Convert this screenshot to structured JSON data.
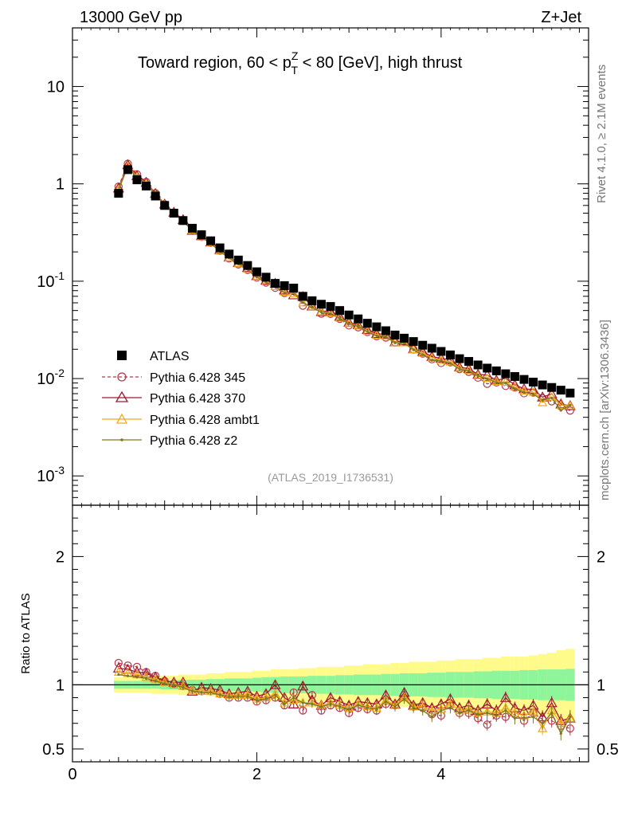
{
  "header": {
    "energy_label": "13000 GeV pp",
    "process_label": "Z+Jet"
  },
  "side_labels": {
    "rivet": "Rivet 4.1.0, ≥ 2.1M events",
    "mcplots": "mcplots.cern.ch [arXiv:1306.3436]"
  },
  "chart_data": {
    "type": "scatter",
    "title": {
      "prefix": "Toward region, 60 < p",
      "sup": "Z",
      "sub": "T",
      "suffix": " < 80 [GeV], high thrust"
    },
    "analysis_id": "(ATLAS_2019_I1736531)",
    "x_ticks": [
      "0",
      "2",
      "4"
    ],
    "xlim": [
      0,
      5.6
    ],
    "ylim_main": [
      0.0005,
      40
    ],
    "ylim_ratio": [
      0.4,
      2.4
    ],
    "y_ticks_main": [
      {
        "base": "10",
        "exp": "-3"
      },
      {
        "base": "10",
        "exp": "-2"
      },
      {
        "base": "10",
        "exp": "-1"
      },
      {
        "base": "1",
        "exp": ""
      },
      {
        "base": "10",
        "exp": ""
      }
    ],
    "y_ticks_ratio": [
      "0.5",
      "1",
      "2"
    ],
    "ratio_ylabel": "Ratio to ATLAS",
    "x": [
      0.5,
      0.6,
      0.7,
      0.8,
      0.9,
      1.0,
      1.1,
      1.2,
      1.3,
      1.4,
      1.5,
      1.6,
      1.7,
      1.8,
      1.9,
      2.0,
      2.1,
      2.2,
      2.3,
      2.4,
      2.5,
      2.6,
      2.7,
      2.8,
      2.9,
      3.0,
      3.1,
      3.2,
      3.3,
      3.4,
      3.5,
      3.6,
      3.7,
      3.8,
      3.9,
      4.0,
      4.1,
      4.2,
      4.3,
      4.4,
      4.5,
      4.6,
      4.7,
      4.8,
      4.9,
      5.0,
      5.1,
      5.2,
      5.3,
      5.4
    ],
    "atlas": [
      0.8,
      1.4,
      1.1,
      0.95,
      0.75,
      0.6,
      0.5,
      0.42,
      0.35,
      0.3,
      0.26,
      0.22,
      0.19,
      0.165,
      0.145,
      0.125,
      0.11,
      0.095,
      0.09,
      0.085,
      0.07,
      0.063,
      0.058,
      0.055,
      0.05,
      0.045,
      0.041,
      0.037,
      0.034,
      0.031,
      0.028,
      0.026,
      0.024,
      0.022,
      0.0205,
      0.019,
      0.0175,
      0.016,
      0.015,
      0.0138,
      0.0128,
      0.012,
      0.0112,
      0.0105,
      0.0098,
      0.0092,
      0.0086,
      0.0081,
      0.0076,
      0.0071
    ],
    "band_stat": [
      0.03,
      0.03,
      0.03,
      0.03,
      0.03,
      0.035,
      0.035,
      0.04,
      0.04,
      0.04,
      0.045,
      0.045,
      0.05,
      0.05,
      0.05,
      0.055,
      0.06,
      0.06,
      0.065,
      0.065,
      0.065,
      0.07,
      0.07,
      0.07,
      0.075,
      0.075,
      0.08,
      0.08,
      0.08,
      0.085,
      0.085,
      0.09,
      0.09,
      0.09,
      0.095,
      0.095,
      0.1,
      0.1,
      0.1,
      0.105,
      0.105,
      0.11,
      0.11,
      0.11,
      0.115,
      0.115,
      0.12,
      0.12,
      0.12,
      0.125
    ],
    "band_total": [
      0.06,
      0.06,
      0.06,
      0.06,
      0.07,
      0.07,
      0.07,
      0.08,
      0.08,
      0.08,
      0.09,
      0.09,
      0.1,
      0.1,
      0.1,
      0.11,
      0.11,
      0.12,
      0.12,
      0.12,
      0.13,
      0.13,
      0.14,
      0.14,
      0.14,
      0.15,
      0.15,
      0.16,
      0.16,
      0.16,
      0.17,
      0.17,
      0.18,
      0.18,
      0.18,
      0.19,
      0.19,
      0.2,
      0.2,
      0.2,
      0.21,
      0.21,
      0.22,
      0.22,
      0.22,
      0.23,
      0.24,
      0.25,
      0.27,
      0.28
    ],
    "series": [
      {
        "name": "Pythia 6.428 345",
        "color": "#b5384a",
        "marker": "circle",
        "dash": true,
        "ratio": [
          1.17,
          1.15,
          1.14,
          1.1,
          1.07,
          1.03,
          1.01,
          0.99,
          0.96,
          0.95,
          0.95,
          0.93,
          0.9,
          0.9,
          0.9,
          0.87,
          0.88,
          0.9,
          0.84,
          0.94,
          0.8,
          0.92,
          0.8,
          0.84,
          0.82,
          0.78,
          0.82,
          0.81,
          0.8,
          0.85,
          0.84,
          0.92,
          0.83,
          0.82,
          0.77,
          0.76,
          0.84,
          0.78,
          0.78,
          0.74,
          0.69,
          0.76,
          0.75,
          0.77,
          0.72,
          0.78,
          0.73,
          0.72,
          0.68,
          0.66
        ]
      },
      {
        "name": "Pythia 6.428 370",
        "color": "#9e1a2e",
        "marker": "triangle",
        "dash": false,
        "ratio": [
          1.13,
          1.12,
          1.1,
          1.09,
          1.06,
          1.03,
          1.02,
          1.02,
          0.95,
          0.98,
          0.97,
          0.96,
          0.93,
          0.94,
          0.95,
          0.91,
          0.93,
          1.0,
          0.9,
          0.85,
          0.99,
          0.88,
          0.84,
          0.9,
          0.87,
          0.84,
          0.87,
          0.86,
          0.85,
          0.92,
          0.85,
          0.94,
          0.84,
          0.86,
          0.82,
          0.85,
          0.89,
          0.82,
          0.84,
          0.8,
          0.85,
          0.8,
          0.9,
          0.82,
          0.8,
          0.84,
          0.75,
          0.86,
          0.72,
          0.74
        ]
      },
      {
        "name": "Pythia 6.428 ambt1",
        "color": "#f0a81c",
        "marker": "triangle",
        "dash": false,
        "ratio": [
          1.1,
          1.09,
          1.08,
          1.06,
          1.04,
          1.02,
          1.0,
          0.99,
          0.96,
          0.95,
          0.95,
          0.93,
          0.92,
          0.92,
          0.92,
          0.89,
          0.9,
          0.93,
          0.86,
          0.88,
          0.86,
          0.86,
          0.84,
          0.86,
          0.84,
          0.82,
          0.85,
          0.83,
          0.82,
          0.88,
          0.84,
          0.9,
          0.83,
          0.83,
          0.8,
          0.81,
          0.85,
          0.8,
          0.81,
          0.78,
          0.79,
          0.78,
          0.82,
          0.78,
          0.76,
          0.79,
          0.66,
          0.8,
          0.7,
          0.74
        ]
      },
      {
        "name": "Pythia 6.428 z2",
        "color": "#7a7a20",
        "marker": "dot",
        "dash": false,
        "ratio": [
          1.08,
          1.07,
          1.06,
          1.05,
          1.03,
          1.01,
          1.0,
          0.98,
          0.95,
          0.94,
          0.94,
          0.92,
          0.91,
          0.91,
          0.91,
          0.88,
          0.89,
          0.92,
          0.85,
          0.9,
          0.86,
          0.85,
          0.83,
          0.85,
          0.83,
          0.81,
          0.84,
          0.82,
          0.81,
          0.87,
          0.83,
          0.89,
          0.82,
          0.8,
          0.75,
          0.8,
          0.82,
          0.78,
          0.8,
          0.77,
          0.78,
          0.76,
          0.8,
          0.74,
          0.74,
          0.75,
          0.7,
          0.78,
          0.62,
          0.75
        ]
      }
    ],
    "legend": {
      "position": "lower-left",
      "entries": [
        "ATLAS",
        "Pythia 6.428 345",
        "Pythia 6.428 370",
        "Pythia 6.428 ambt1",
        "Pythia 6.428 z2"
      ]
    },
    "colors": {
      "atlas": "#000000",
      "band_stat": "#8ef59b",
      "band_total": "#fefb8a"
    }
  }
}
